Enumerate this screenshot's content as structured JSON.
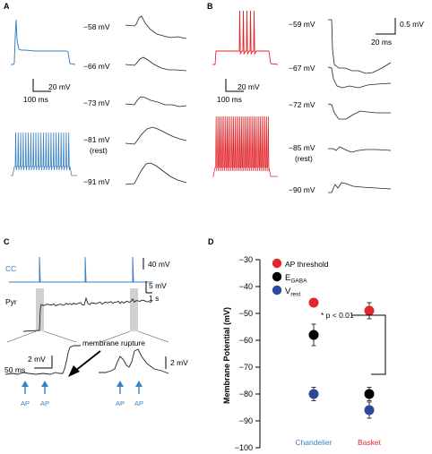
{
  "panels": {
    "A": {
      "letter": "A",
      "voltages": [
        "−58 mV",
        "−66 mV",
        "−73 mV",
        "−81 mV",
        "−91 mV"
      ],
      "rest_label": "(rest)",
      "scale_mv": "20 mV",
      "scale_ms": "100 ms",
      "colors": {
        "trace": "#3a82c4"
      }
    },
    "B": {
      "letter": "B",
      "voltages": [
        "−59 mV",
        "−67 mV",
        "−72 mV",
        "−85 mV",
        "−90 mV"
      ],
      "rest_label": "(rest)",
      "scale_mv": "20 mV",
      "scale_ms": "100 ms",
      "psp_scale_mv": "0.5 mV",
      "psp_scale_ms": "20 ms",
      "colors": {
        "trace": "#e1262c"
      }
    },
    "C": {
      "letter": "C",
      "cc_label": "CC",
      "pyr_label": "Pyr",
      "cc_scale": "40 mV",
      "pyr_scale_mv": "5 mV",
      "pyr_scale_s": "1 s",
      "zoom_scale_mv_left": "2 mV",
      "zoom_scale_ms": "50 ms",
      "zoom_scale_mv_right": "2 mV",
      "annotation": "membrane rupture",
      "ap_labels": [
        "AP",
        "AP",
        "AP",
        "AP"
      ]
    },
    "D": {
      "letter": "D"
    }
  },
  "chart_data": {
    "type": "scatter",
    "ylabel": "Membrane Potential (mV)",
    "ylim": [
      -100,
      -30
    ],
    "yticks": [
      -30,
      -40,
      -50,
      -60,
      -70,
      -80,
      -90,
      -100
    ],
    "ytick_labels": [
      "−30",
      "−40",
      "−50",
      "−60",
      "−70",
      "−80",
      "−90",
      "−100"
    ],
    "categories": [
      "Chandelier",
      "Basket"
    ],
    "category_colors": [
      "#3a82c4",
      "#e1262c"
    ],
    "legend_position": "top-left",
    "series": [
      {
        "name": "AP threshold",
        "color": "#e1262c",
        "values": [
          -46,
          -49
        ],
        "errors": [
          1.5,
          3
        ]
      },
      {
        "name": "EGABA",
        "name_main": "E",
        "name_sub": "GABA",
        "color": "#000000",
        "values": [
          -58,
          -80
        ],
        "errors": [
          4,
          2.5
        ]
      },
      {
        "name": "Vrest",
        "name_main": "V",
        "name_sub": "rest",
        "color": "#2b4a9c",
        "values": [
          -80,
          -86
        ],
        "errors": [
          2.5,
          3
        ]
      }
    ],
    "annotation": "* p < 0.01"
  }
}
